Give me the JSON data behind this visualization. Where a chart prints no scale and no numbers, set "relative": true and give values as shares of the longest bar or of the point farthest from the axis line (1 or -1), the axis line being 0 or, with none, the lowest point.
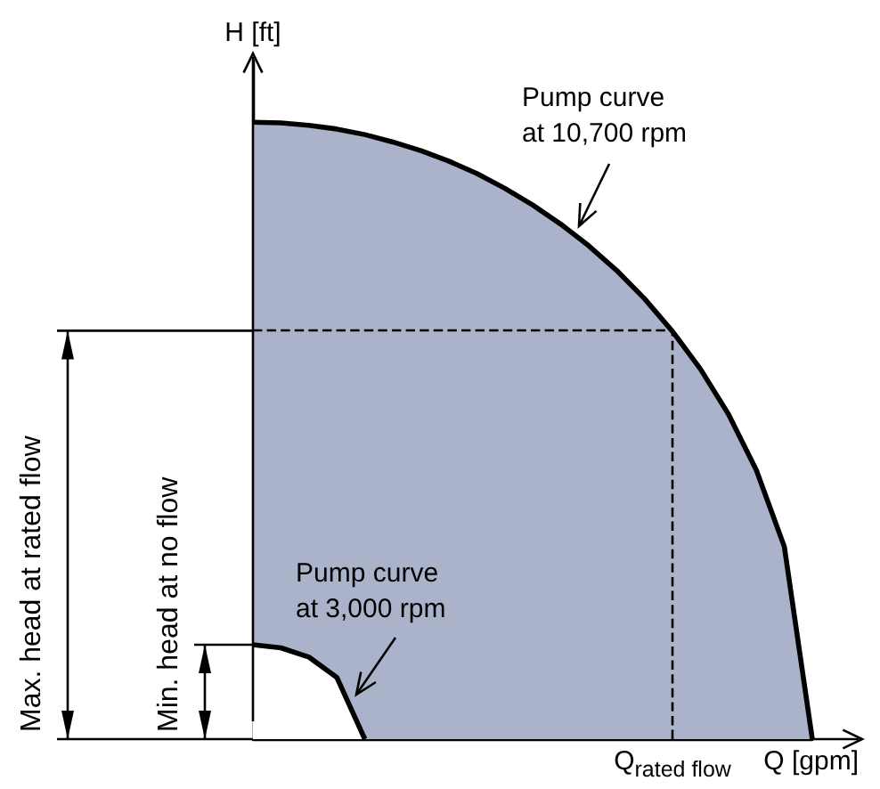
{
  "chart_data": {
    "type": "area",
    "relative": true,
    "xlabel": "Q [gpm]",
    "ylabel": "H [ft]",
    "categories": [
      null,
      null,
      null,
      null,
      null,
      null,
      null,
      null,
      null,
      null,
      null,
      null,
      null,
      null,
      null,
      null,
      null,
      null,
      null,
      null,
      null
    ],
    "series": [
      {
        "color": "#aab3ca",
        "values": [
          1,
          0.999,
          0.995,
          0.989,
          0.98,
          0.968,
          0.954,
          0.937,
          0.917,
          0.893,
          0.866,
          0.835,
          0.8,
          0.76,
          0.714,
          0.661,
          0.6,
          0.527,
          0.436,
          0.312,
          0
        ]
      },
      {
        "color": "#ffffff",
        "values": [
          0.153,
          0.148,
          0.133,
          0.1,
          0,
          null,
          null,
          null,
          null,
          null,
          null,
          null,
          null,
          null,
          null,
          null,
          null,
          null,
          null,
          null,
          null
        ]
      }
    ],
    "ref_lines": [
      {
        "axis": "y",
        "value": 0.662,
        "color": "#000000",
        "line_style": "dashed"
      }
    ],
    "annotations": [
      "Pump curve\nat 10,700 rpm",
      "Pump curve\nat 3,000 rpm",
      "Max. head at rated flow",
      "Min. head at no flow",
      "Q$_{rated flow}$"
    ],
    "grid": false
  }
}
